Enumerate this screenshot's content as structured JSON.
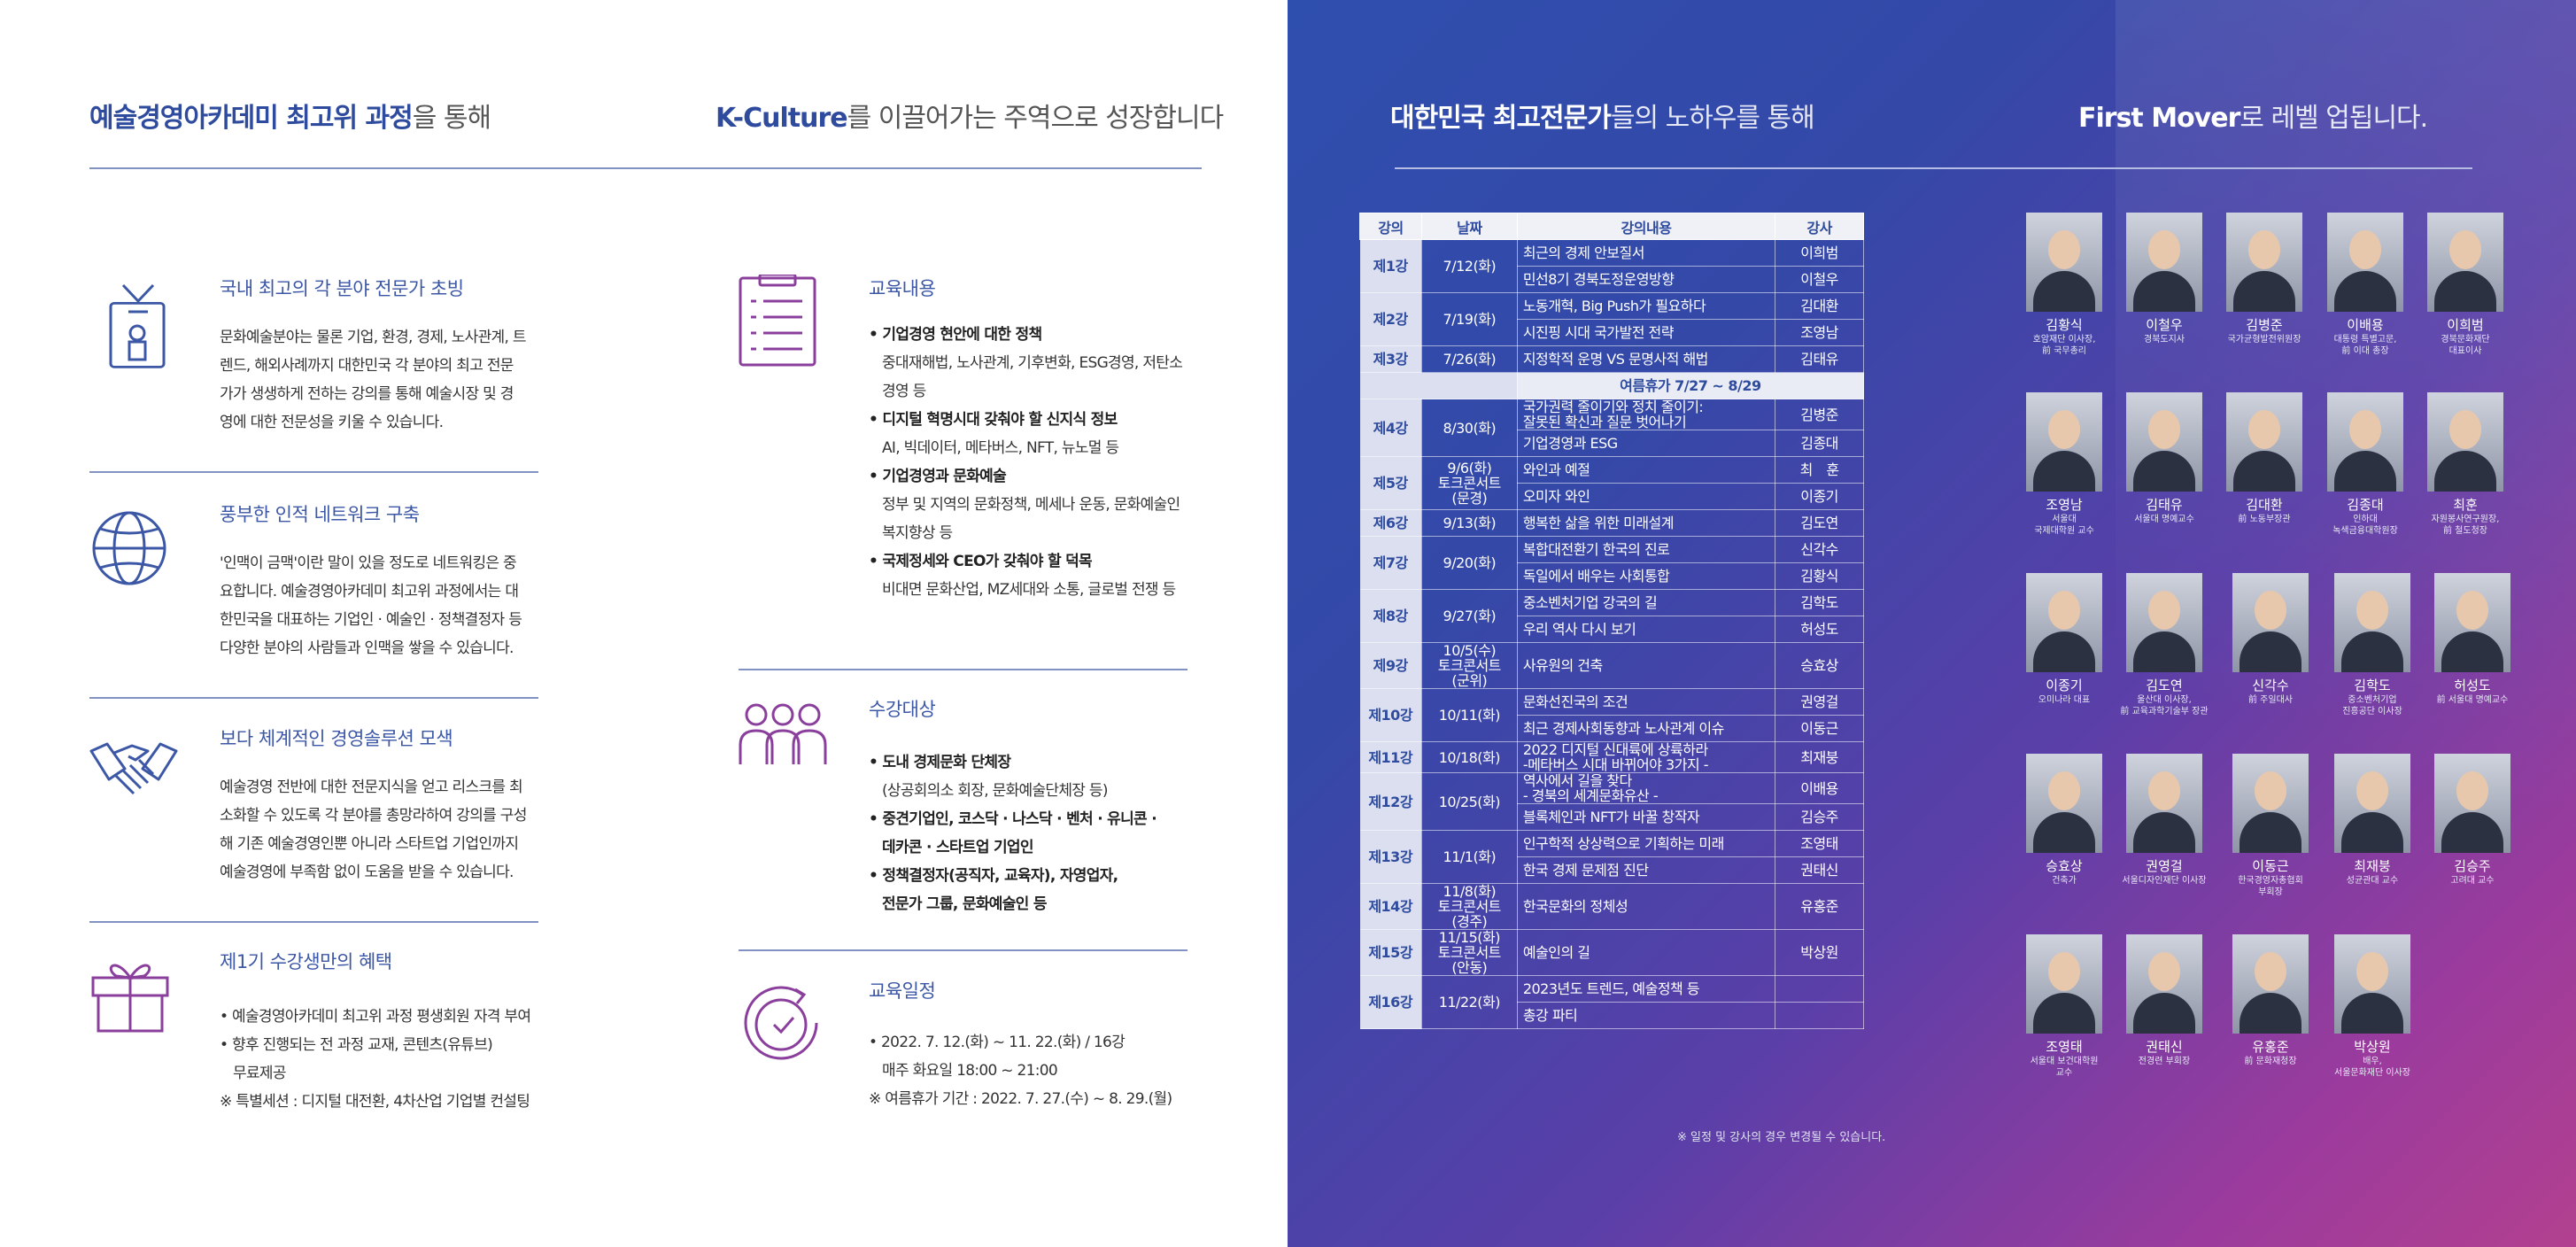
{
  "left": {
    "heading_a_bold": "예술경영아카데미 최고위 과정",
    "heading_a_rest": "을 통해",
    "heading_b_bold": "K-Culture",
    "heading_b_rest": "를 이끌어가는 주역으로 성장합니다",
    "col1": [
      {
        "icon": "id-badge-icon",
        "title": "국내 최고의 각 분야 전문가 초빙",
        "lines": [
          "문화예술분야는 물론 기업, 환경, 경제, 노사관계, 트",
          "렌드, 해외사례까지 대한민국 각 분야의 최고 전문",
          "가가 생생하게 전하는 강의를 통해 예술시장 및 경",
          "영에 대한 전문성을 키울 수 있습니다."
        ]
      },
      {
        "icon": "globe-icon",
        "title": "풍부한 인적 네트워크 구축",
        "lines": [
          "'인맥이 금맥'이란 말이 있을 정도로 네트워킹은 중",
          "요합니다. 예술경영아카데미 최고위 과정에서는 대",
          "한민국을 대표하는 기업인 · 예술인 · 정책결정자 등",
          "다양한 분야의 사람들과 인맥을 쌓을 수 있습니다."
        ]
      },
      {
        "icon": "handshake-icon",
        "title": "보다 체계적인 경영솔루션 모색",
        "lines": [
          "예술경영 전반에 대한 전문지식을 얻고 리스크를 최",
          "소화할 수 있도록 각 분야를 총망라하여 강의를 구성",
          "해 기존 예술경영인뿐 아니라 스타트업 기업인까지",
          "예술경영에 부족함 없이 도움을 받을 수 있습니다."
        ]
      },
      {
        "icon": "gift-icon",
        "title": "제1기 수강생만의 혜택",
        "lines": [
          "• 예술경영아카데미 최고위 과정 평생회원 자격 부여",
          "• 향후 진행되는 전 과정 교재, 콘텐츠(유튜브)",
          "  무료제공",
          "※ 특별세션 : 디지털 대전환, 4차산업 기업별 컨설팅"
        ]
      }
    ],
    "col2": [
      {
        "icon": "clipboard-icon",
        "title": "교육내용",
        "lines": [
          {
            "t": "• 기업경영 현안에 대한 정책",
            "b": true
          },
          {
            "t": "중대재해법, 노사관계, 기후변화, ESG경영, 저탄소",
            "b": false
          },
          {
            "t": "경영 등",
            "b": false
          },
          {
            "t": "• 디지털 혁명시대 갖춰야 할 신지식 정보",
            "b": true
          },
          {
            "t": "AI, 빅데이터, 메타버스, NFT, 뉴노멀 등",
            "b": false
          },
          {
            "t": "• 기업경영과 문화예술",
            "b": true
          },
          {
            "t": "정부 및 지역의 문화정책, 메세나 운동, 문화예술인",
            "b": false
          },
          {
            "t": "복지향상 등",
            "b": false
          },
          {
            "t": "• 국제정세와 CEO가 갖춰야 할 덕목",
            "b": true
          },
          {
            "t": "비대면 문화산업, MZ세대와 소통, 글로벌 전쟁 등",
            "b": false
          }
        ]
      },
      {
        "icon": "people-group-icon",
        "title": "수강대상",
        "lines": [
          {
            "t": "• 도내 경제문화 단체장",
            "b": true
          },
          {
            "t": "(상공회의소 회장, 문화예술단체장 등)",
            "b": false
          },
          {
            "t": "• 중견기업인, 코스닥 · 나스닥 · 벤처 · 유니콘 ·",
            "b": true
          },
          {
            "t": "데카콘 · 스타트업 기업인",
            "b": true
          },
          {
            "t": "• 정책결정자(공직자, 교육자), 자영업자,",
            "b": true
          },
          {
            "t": "전문가 그룹, 문화예술인 등",
            "b": true
          }
        ]
      },
      {
        "icon": "clock-icon",
        "title": "교육일정",
        "lines": [
          {
            "t": "• 2022. 7. 12.(화) ~ 11. 22.(화) / 16강",
            "b": false
          },
          {
            "t": "매주 화요일 18:00 ~ 21:00",
            "b": false
          },
          {
            "t": "※ 여름휴가 기간 : 2022. 7. 27.(수) ~ 8. 29.(월)",
            "b": false
          }
        ]
      }
    ]
  },
  "right": {
    "heading_a_bold": "대한민국 최고전문가",
    "heading_a_rest": "들의 노하우를 통해",
    "heading_b_bold": "First Mover",
    "heading_b_rest": "로 레벨 업됩니다.",
    "table_headers": [
      "강의",
      "날짜",
      "강의내용",
      "강사"
    ],
    "summer_break": "여름휴가 7/27 ~ 8/29",
    "lectures": [
      {
        "lec": "제1강",
        "date": "7/12(화)",
        "rows": [
          [
            "최근의 경제 안보질서",
            "이희범"
          ],
          [
            "민선8기 경북도정운영방향",
            "이철우"
          ]
        ]
      },
      {
        "lec": "제2강",
        "date": "7/19(화)",
        "rows": [
          [
            "노동개혁, Big Push가 필요하다",
            "김대환"
          ],
          [
            "시진핑 시대 국가발전 전략",
            "조영남"
          ]
        ]
      },
      {
        "lec": "제3강",
        "date": "7/26(화)",
        "rows": [
          [
            "지정학적 운명 VS 문명사적 해법",
            "김태유"
          ]
        ]
      },
      {
        "lec": "제4강",
        "date": "8/30(화)",
        "rows": [
          [
            "국가권력 줄이기와 정치 줄이기:\n잘못된 확신과 질문 벗어나기",
            "김병준"
          ],
          [
            "기업경영과 ESG",
            "김종대"
          ]
        ]
      },
      {
        "lec": "제5강",
        "date": "9/6(화)\n토크콘서트\n(문경)",
        "rows": [
          [
            "와인과 예절",
            "최　훈"
          ],
          [
            "오미자 와인",
            "이종기"
          ]
        ]
      },
      {
        "lec": "제6강",
        "date": "9/13(화)",
        "rows": [
          [
            "행복한 삶을 위한 미래설계",
            "김도연"
          ]
        ]
      },
      {
        "lec": "제7강",
        "date": "9/20(화)",
        "rows": [
          [
            "복합대전환기 한국의 진로",
            "신각수"
          ],
          [
            "독일에서 배우는 사회통합",
            "김황식"
          ]
        ]
      },
      {
        "lec": "제8강",
        "date": "9/27(화)",
        "rows": [
          [
            "중소벤처기업 강국의 길",
            "김학도"
          ],
          [
            "우리 역사 다시 보기",
            "허성도"
          ]
        ]
      },
      {
        "lec": "제9강",
        "date": "10/5(수)\n토크콘서트\n(군위)",
        "rows": [
          [
            "사유원의 건축",
            "승효상"
          ]
        ]
      },
      {
        "lec": "제10강",
        "date": "10/11(화)",
        "rows": [
          [
            "문화선진국의 조건",
            "권영걸"
          ],
          [
            "최근 경제사회동향과 노사관계 이슈",
            "이동근"
          ]
        ]
      },
      {
        "lec": "제11강",
        "date": "10/18(화)",
        "rows": [
          [
            "2022 디지털 신대륙에 상륙하라\n-메타버스 시대 바뀌어야 3가지 -",
            "최재붕"
          ]
        ]
      },
      {
        "lec": "제12강",
        "date": "10/25(화)",
        "rows": [
          [
            "역사에서 길을 찾다\n- 경북의 세계문화유산 -",
            "이배용"
          ],
          [
            "블록체인과 NFT가 바꿀 창작자",
            "김승주"
          ]
        ]
      },
      {
        "lec": "제13강",
        "date": "11/1(화)",
        "rows": [
          [
            "인구학적 상상력으로 기획하는 미래",
            "조영태"
          ],
          [
            "한국 경제 문제점 진단",
            "권태신"
          ]
        ]
      },
      {
        "lec": "제14강",
        "date": "11/8(화)\n토크콘서트\n(경주)",
        "rows": [
          [
            "한국문화의 정체성",
            "유홍준"
          ]
        ]
      },
      {
        "lec": "제15강",
        "date": "11/15(화)\n토크콘서트\n(안동)",
        "rows": [
          [
            "예술인의 길",
            "박상원"
          ]
        ]
      },
      {
        "lec": "제16강",
        "date": "11/22(화)",
        "rows": [
          [
            "2023년도 트렌드, 예술정책 등",
            ""
          ],
          [
            "총강 파티",
            ""
          ]
        ]
      }
    ],
    "note": "※ 일정 및 강사의 경우 변경될 수 있습니다.",
    "speakers": [
      [
        {
          "name": "김황식",
          "title": "호암재단 이사장,\n前 국무총리"
        },
        {
          "name": "이철우",
          "title": "경북도지사"
        },
        {
          "name": "김병준",
          "title": "국가균형발전위원장"
        },
        {
          "name": "이배용",
          "title": "대통령 특별고문,\n前 이대 총장"
        },
        {
          "name": "이희범",
          "title": "경북문화재단\n대표이사"
        }
      ],
      [
        {
          "name": "조영남",
          "title": "서울대\n국제대학원 교수"
        },
        {
          "name": "김태유",
          "title": "서울대 명예교수"
        },
        {
          "name": "김대환",
          "title": "前 노동부장관"
        },
        {
          "name": "김종대",
          "title": "인하대\n녹색금융대학원장"
        },
        {
          "name": "최훈",
          "title": "자원봉사연구원장,\n前 철도청장"
        }
      ],
      [
        {
          "name": "이종기",
          "title": "오미나라 대표"
        },
        {
          "name": "김도연",
          "title": "울산대 이사장,\n前 교육과학기술부 장관"
        },
        {
          "name": "신각수",
          "title": "前 주일대사"
        },
        {
          "name": "김학도",
          "title": "중소벤처기업\n진흥공단 이사장"
        },
        {
          "name": "허성도",
          "title": "前 서울대 명예교수"
        }
      ],
      [
        {
          "name": "승효상",
          "title": "건축가"
        },
        {
          "name": "권영걸",
          "title": "서울디자인재단 이사장"
        },
        {
          "name": "이동근",
          "title": "한국경영자총협회\n부회장"
        },
        {
          "name": "최재붕",
          "title": "성균관대 교수"
        },
        {
          "name": "김승주",
          "title": "고려대 교수"
        }
      ],
      [
        {
          "name": "조영태",
          "title": "서울대 보건대학원\n교수"
        },
        {
          "name": "권태신",
          "title": "전경련 부회장"
        },
        {
          "name": "유홍준",
          "title": "前 문화재청장"
        },
        {
          "name": "박상원",
          "title": "배우,\n서울문화재단 이사장"
        }
      ]
    ]
  },
  "colors": {
    "accent_blue": "#2e4b9e",
    "accent_purple": "#8b3f9c",
    "right_bg_start": "#2f4fae",
    "right_bg_end": "#b2408f"
  }
}
